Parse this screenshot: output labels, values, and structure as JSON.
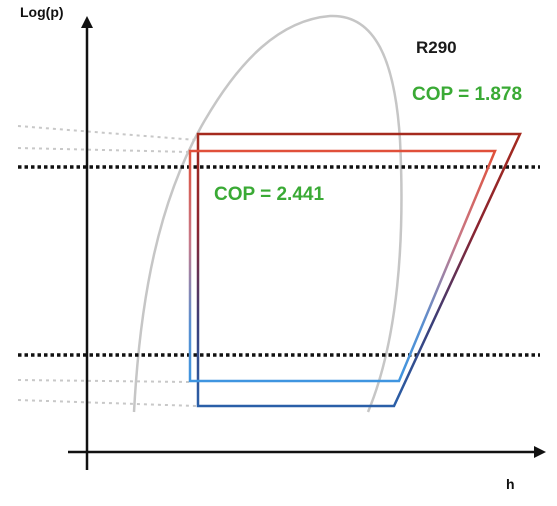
{
  "axes": {
    "y_label": "Log(p)",
    "x_label": "h"
  },
  "refrigerant": "R290",
  "cop_upper": "COP = 1.878",
  "cop_lower": "COP = 2.441",
  "colors": {
    "cop_text": "#3aaa35",
    "hot_red": "#c0392b",
    "hot_red_dark": "#7b1e1e",
    "cold_blue": "#2e6db4",
    "cold_blue_light": "#5aa0e0",
    "dome_gray": "#bdbdbd",
    "axis": "#111111",
    "isobar_black": "#111111",
    "isobar_gray": "#c4c4c4"
  }
}
